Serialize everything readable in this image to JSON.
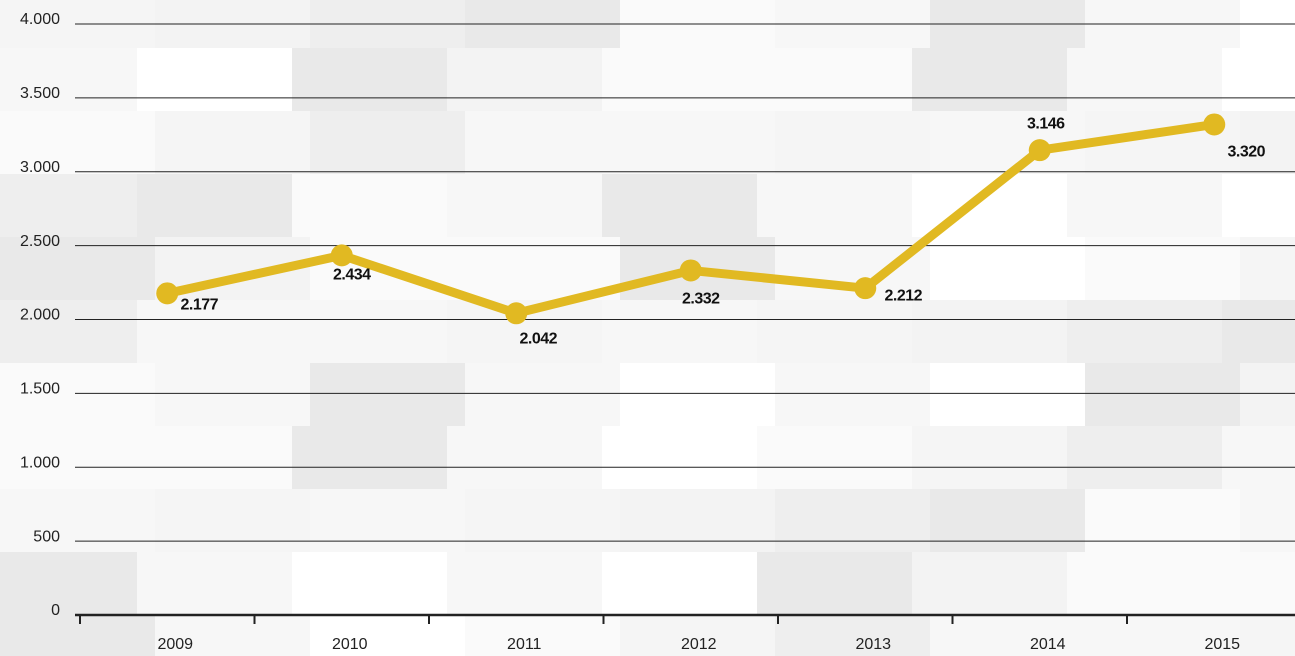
{
  "chart_data": {
    "type": "line",
    "categories": [
      "2009",
      "2010",
      "2011",
      "2012",
      "2013",
      "2014",
      "2015"
    ],
    "series": [
      {
        "color": "#e1b922",
        "values": [
          2177,
          2434,
          2042,
          2332,
          2212,
          3146,
          3320
        ],
        "value_labels": [
          "2.177",
          "2.434",
          "2.042",
          "2.332",
          "2.212",
          "3.146",
          "3.320"
        ]
      }
    ],
    "ylim": [
      0,
      4000
    ],
    "yticks": [
      0,
      500,
      {
        "value": 1000,
        "label": "1.000"
      },
      {
        "value": 1500,
        "label": "1.500"
      },
      {
        "value": 2000,
        "label": "2.000"
      },
      {
        "value": 2500,
        "label": "2.500"
      },
      {
        "value": 3000,
        "label": "3.000"
      },
      {
        "value": 3500,
        "label": "3.500"
      },
      {
        "value": 4000,
        "label": "4.000"
      }
    ],
    "grid": true
  }
}
